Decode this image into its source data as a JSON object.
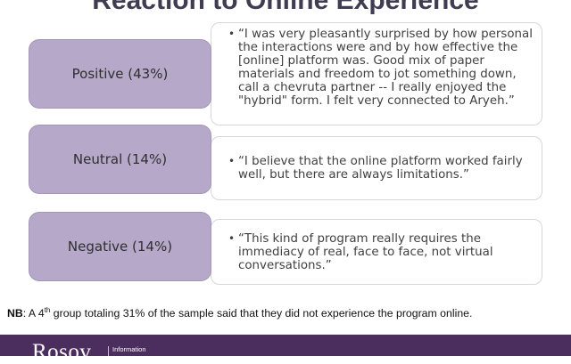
{
  "title": "Reaction to Online Experience",
  "groups": [
    {
      "label": "Positive (43%)",
      "quote": "“I was very pleasantly surprised by how personal the interactions were and by how effective the [online] platform was. Good mix of paper materials and freedom to jot something down, call a chevruta partner -- I really enjoyed the \"hybrid\" form. I felt very connected to Aryeh.”"
    },
    {
      "label": "Neutral (14%)",
      "quote": "“I believe that the online platform worked fairly well, but there are always limitations.”"
    },
    {
      "label": "Negative (14%)",
      "quote": "“This kind of program really requires the immediacy of real, face to face, not virtual conversations.”"
    }
  ],
  "note": {
    "prefix": "NB",
    "text_before": ": A 4",
    "superscript": "th",
    "text_after": " group totaling 31% of the sample said that they did not experience the program online."
  },
  "footer": {
    "logo_text": "Rosov",
    "logo_sub": "Information",
    "background": "#4b2d5e"
  },
  "colors": {
    "label_fill": "#b6a8c8",
    "title": "#403d52"
  }
}
